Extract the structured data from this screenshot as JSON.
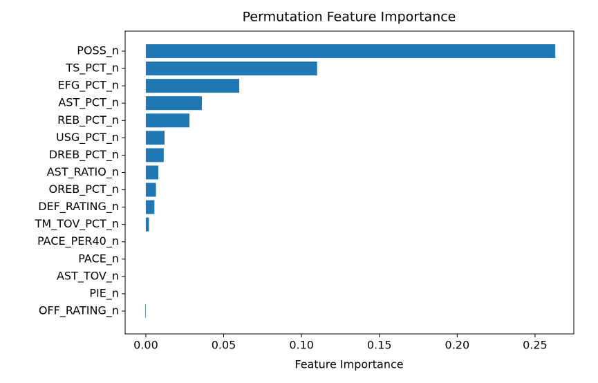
{
  "chart_data": {
    "type": "barh",
    "title": "Permutation Feature Importance",
    "x_label": "Feature Importance",
    "categories": [
      "POSS_n",
      "TS_PCT_n",
      "EFG_PCT_n",
      "AST_PCT_n",
      "REB_PCT_n",
      "USG_PCT_n",
      "DREB_PCT_n",
      "AST_RATIO_n",
      "OREB_PCT_n",
      "DEF_RATING_n",
      "TM_TOV_PCT_n",
      "PACE_PER40_n",
      "PACE_n",
      "AST_TOV_n",
      "PIE_n",
      "OFF_RATING_n"
    ],
    "values": [
      0.263,
      0.11,
      0.06,
      0.036,
      0.028,
      0.012,
      0.0115,
      0.008,
      0.0065,
      0.0055,
      0.002,
      0,
      0,
      0,
      0,
      -0.0003
    ],
    "color": "#1f77b4",
    "xlim": [
      -0.0133,
      0.2749
    ],
    "xticks": [
      {
        "value": 0,
        "label": "0.00"
      },
      {
        "value": 0.05,
        "label": "0.05"
      },
      {
        "value": 0.1,
        "label": "0.10"
      },
      {
        "value": 0.15,
        "label": "0.15"
      },
      {
        "value": 0.2,
        "label": "0.20"
      },
      {
        "value": 0.25,
        "label": "0.25"
      }
    ]
  }
}
